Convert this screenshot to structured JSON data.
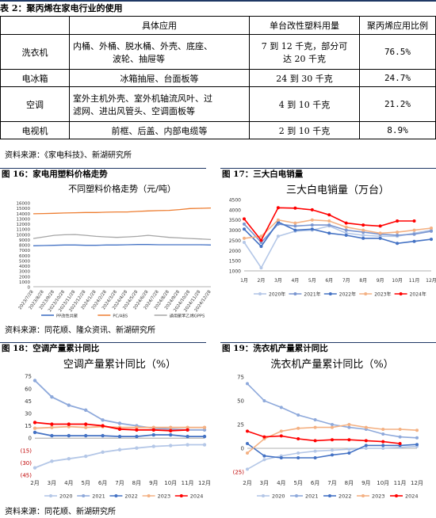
{
  "table2": {
    "title": "表 2：聚丙烯在家电行业的使用",
    "headers": [
      "",
      "具体应用",
      "单台改性塑料用量",
      "聚丙烯应用比例"
    ],
    "rows": [
      {
        "appliance": "洗衣机",
        "application_line1": "内桶、外桶、脱水桶、外壳、底座、",
        "application_line2": "波轮、抽屉等",
        "usage_line1": "7 到 12 千克，部分可",
        "usage_line2": "达 20 千克",
        "ratio": "76.5%"
      },
      {
        "appliance": "电冰箱",
        "application_line1": "冰箱抽屉、台面板等",
        "application_line2": "",
        "usage_line1": "24 到 30 千克",
        "usage_line2": "",
        "ratio": "24.7%"
      },
      {
        "appliance": "空调",
        "application_line1": "室外主机外壳、室外机轴流风叶、过",
        "application_line2": "滤网、进出风管头、空调面板等",
        "usage_line1": "4 到 10 千克",
        "usage_line2": "",
        "ratio": "21.2%"
      },
      {
        "appliance": "电视机",
        "application_line1": "前框、后盖、内部电缆等",
        "application_line2": "",
        "usage_line1": "2 到 10 千克",
        "usage_line2": "",
        "ratio": "8.9%"
      }
    ],
    "source": "资料来源：《家电科技》、新湖研究所"
  },
  "source_mid": "资料来源：同花顺、隆众资讯、新湖研究所",
  "source_bottom": "资料来源：同花顺、新湖研究所",
  "figures": [
    {
      "key": "fig16",
      "label": "图 16：家电用塑料价格走势"
    },
    {
      "key": "fig17",
      "label": "图 17：三大白电销量"
    },
    {
      "key": "fig18",
      "label": "图 18：空调产量累计同比"
    },
    {
      "key": "fig19",
      "label": "图 19：洗衣机产量累计同比"
    }
  ],
  "chart_data": [
    {
      "id": "fig16",
      "type": "line",
      "title": "不同塑料价格走势（元/吨）",
      "ylim": [
        0,
        16000
      ],
      "yticks": [
        0,
        1000,
        2000,
        3000,
        4000,
        5000,
        6000,
        7000,
        8000,
        9000,
        10000,
        11000,
        12000,
        13000,
        14000,
        15000,
        16000
      ],
      "x_tick_labels": [
        "2023/7/28",
        "2023/8/28",
        "2023/9/28",
        "2023/10/28",
        "2023/11/28",
        "2023/12/28",
        "2024/1/28",
        "2024/2/28",
        "2024/3/28",
        "2024/4/28",
        "2024/5/28",
        "2024/6/28",
        "2024/7/28",
        "2024/8/28",
        "2024/9/28",
        "2024/10/28",
        "2024/11/28",
        "2024/12/28"
      ],
      "series": [
        {
          "name": "PP改性共聚",
          "color": "#4472c4",
          "values": [
            7800,
            7850,
            7900,
            7950,
            7950,
            7900,
            7900,
            7950,
            7950,
            8000,
            8050,
            8050,
            8000,
            8000,
            8000,
            8000,
            8000,
            7950
          ]
        },
        {
          "name": "PC/ABS",
          "color": "#ed7d31",
          "values": [
            13900,
            13950,
            14000,
            14050,
            14100,
            14150,
            14150,
            14200,
            14250,
            14250,
            14350,
            14450,
            14500,
            14550,
            14700,
            14900,
            14950,
            15000
          ]
        },
        {
          "name": "通用聚苯乙烯GPPS",
          "color": "#a5a5a5",
          "values": [
            9200,
            9500,
            9800,
            9900,
            9950,
            9800,
            9600,
            9500,
            9400,
            9500,
            9600,
            9800,
            9600,
            9400,
            9300,
            9200,
            9100,
            9000
          ]
        }
      ]
    },
    {
      "id": "fig17",
      "type": "line",
      "title": "三大白电销量（万台）",
      "ylim": [
        1000,
        4500
      ],
      "yticks": [
        1000,
        1500,
        2000,
        2500,
        3000,
        3500,
        4000,
        4500
      ],
      "categories": [
        "1月",
        "2月",
        "3月",
        "4月",
        "5月",
        "6月",
        "7月",
        "8月",
        "9月",
        "10月",
        "11月",
        "12月"
      ],
      "series": [
        {
          "name": "2020年",
          "color": "#b4c7e7",
          "values": [
            2400,
            1150,
            2700,
            2950,
            3000,
            3200,
            2850,
            2750,
            2700,
            2700,
            2850,
            3000
          ]
        },
        {
          "name": "2021年",
          "color": "#7a96d1",
          "values": [
            3300,
            2400,
            3300,
            3200,
            3250,
            3250,
            3000,
            2900,
            2800,
            2750,
            2800,
            2950
          ]
        },
        {
          "name": "2022年",
          "color": "#4472c4",
          "values": [
            3050,
            2200,
            3400,
            3000,
            3050,
            2850,
            2750,
            2600,
            2600,
            2350,
            2450,
            2550
          ]
        },
        {
          "name": "2023年",
          "color": "#f4b183",
          "values": [
            2600,
            2700,
            3500,
            3350,
            3500,
            3450,
            3150,
            3000,
            2850,
            2900,
            3000,
            3100
          ]
        },
        {
          "name": "2024年",
          "color": "#ff0000",
          "values": [
            3550,
            2500,
            4100,
            4080,
            4000,
            3750,
            3350,
            3250,
            3200,
            3450,
            3450,
            null
          ]
        }
      ]
    },
    {
      "id": "fig18",
      "type": "line",
      "title": "空调产量累计同比（%）",
      "ylim": [
        -45,
        80
      ],
      "yticks": [
        -45,
        -30,
        -15,
        0,
        15,
        30,
        45,
        60,
        75
      ],
      "ytick_labels": [
        "(45)",
        "(30)",
        "(15)",
        "0",
        "15",
        "30",
        "45",
        "60",
        "75"
      ],
      "categories": [
        "2月",
        "3月",
        "4月",
        "5月",
        "6月",
        "7月",
        "8月",
        "9月",
        "10月",
        "11月",
        "12月"
      ],
      "series": [
        {
          "name": "2020",
          "color": "#b4c7e7",
          "values": [
            -36,
            -28,
            -25,
            -22,
            -17,
            -14,
            -12,
            -10,
            -9,
            -8,
            -8
          ]
        },
        {
          "name": "2021",
          "color": "#8ea9db",
          "values": [
            70,
            50,
            40,
            34,
            22,
            18,
            15,
            12,
            11,
            10,
            10
          ]
        },
        {
          "name": "2022",
          "color": "#4472c4",
          "values": [
            7,
            3,
            3,
            3,
            3,
            2,
            2,
            4,
            4,
            2,
            2
          ]
        },
        {
          "name": "2023",
          "color": "#f4b183",
          "values": [
            12,
            13,
            14,
            13,
            14,
            13,
            13,
            13,
            13,
            13,
            13
          ]
        },
        {
          "name": "2024",
          "color": "#ff0000",
          "values": [
            19,
            17,
            17,
            17,
            15,
            11,
            10,
            10,
            9,
            10,
            null
          ]
        }
      ]
    },
    {
      "id": "fig19",
      "type": "line",
      "title": "洗衣机产量累计同比（%）",
      "ylim": [
        -25,
        80
      ],
      "yticks": [
        -25,
        0,
        25,
        50,
        75
      ],
      "ytick_labels": [
        "(25)",
        "0",
        "25",
        "50",
        "75"
      ],
      "categories": [
        "2月",
        "3月",
        "4月",
        "5月",
        "6月",
        "7月",
        "8月",
        "9月",
        "10月",
        "11月",
        "12月"
      ],
      "series": [
        {
          "name": "2020",
          "color": "#b4c7e7",
          "values": [
            -22,
            -12,
            -8,
            -5,
            -3,
            -2,
            -1,
            0,
            0,
            1,
            2
          ]
        },
        {
          "name": "2021",
          "color": "#8ea9db",
          "values": [
            68,
            50,
            43,
            35,
            30,
            25,
            22,
            20,
            15,
            12,
            11
          ]
        },
        {
          "name": "2022",
          "color": "#4472c4",
          "values": [
            5,
            -8,
            -10,
            -10,
            -10,
            -7,
            -5,
            3,
            3,
            3,
            4
          ]
        },
        {
          "name": "2023",
          "color": "#f4b183",
          "values": [
            -5,
            10,
            18,
            21,
            22,
            22,
            25,
            22,
            20,
            20,
            19
          ]
        },
        {
          "name": "2024",
          "color": "#ff0000",
          "values": [
            18,
            12,
            13,
            10,
            8,
            9,
            9,
            8,
            7,
            5,
            null
          ]
        }
      ]
    }
  ]
}
